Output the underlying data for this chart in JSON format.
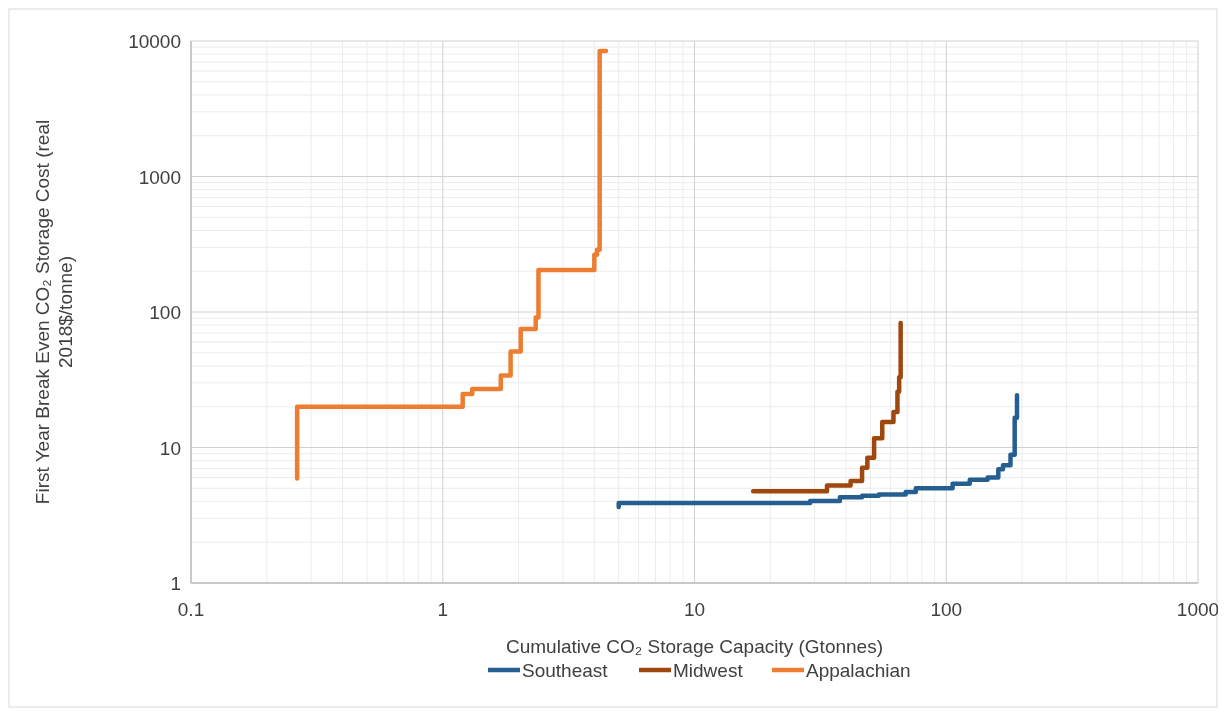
{
  "chart_data": {
    "type": "step",
    "xlabel": "Cumulative CO₂ Storage Capacity (Gtonnes)",
    "ylabel": "First Year Break Even CO₂ Storage Cost (real 2018$/tonne)",
    "log": "xy",
    "grid": true,
    "legend": "bottom",
    "xlim": [
      0.1,
      1000
    ],
    "xticks": [
      0.1,
      1,
      10,
      100,
      1000
    ],
    "ylim": [
      1,
      10000
    ],
    "yticks": [
      1,
      10,
      100,
      1000,
      10000
    ],
    "series": [
      {
        "name": "Southeast",
        "color": "#255e91",
        "x": [
          5,
          5,
          28.8,
          37.8,
          46.3,
          54,
          69,
          75.7,
          106,
          124,
          146,
          161,
          168,
          180,
          187,
          191
        ],
        "values": [
          3.64,
          3.9,
          4.03,
          4.3,
          4.4,
          4.5,
          4.7,
          5.0,
          5.4,
          5.77,
          6.0,
          6.9,
          7.4,
          8.85,
          16.6,
          24.3
        ]
      },
      {
        "name": "Midwest",
        "color": "#9e480e",
        "x": [
          17.1,
          33.6,
          41.7,
          46.3,
          48.6,
          51.7,
          55.7,
          61.7,
          64,
          65,
          65.9
        ],
        "values": [
          4.75,
          5.25,
          5.66,
          7.1,
          8.4,
          11.7,
          15.4,
          18.3,
          25.8,
          33,
          83
        ]
      },
      {
        "name": "Appalachian",
        "color": "#ed7d31",
        "x": [
          0.264,
          0.264,
          1.2,
          1.31,
          1.7,
          1.86,
          2.04,
          2.34,
          2.4,
          4.0,
          4.1,
          4.2,
          4.45
        ],
        "values": [
          5.9,
          20,
          24.8,
          27,
          34,
          51,
          75,
          91,
          204,
          264,
          288,
          8450,
          8450
        ]
      }
    ]
  }
}
